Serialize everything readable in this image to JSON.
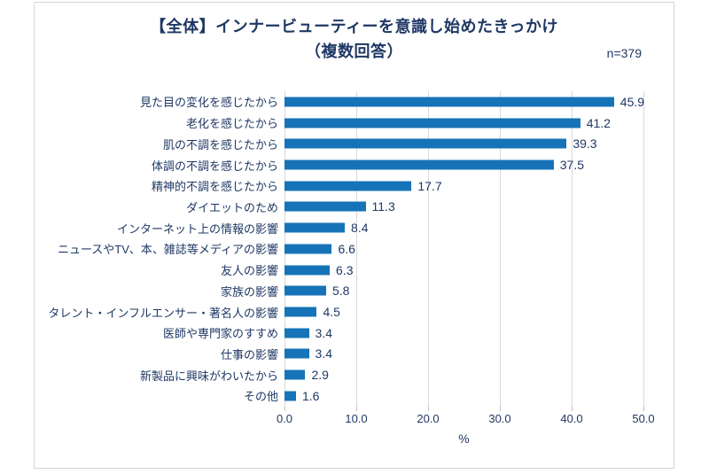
{
  "header": {
    "title_line1": "【全体】インナービューティーを意識し始めたきっかけ",
    "title_line2": "（複数回答）",
    "sample_size": "n=379"
  },
  "colors": {
    "bar": "#1673b8",
    "text": "#1f3864",
    "gridline": "#d9d9d9",
    "frame_border": "#d6d6d6"
  },
  "chart_data": {
    "type": "bar",
    "orientation": "horizontal",
    "title": "【全体】インナービューティーを意識し始めたきっかけ（複数回答）",
    "annotation": "n=379",
    "categories": [
      "見た目の変化を感じたから",
      "老化を感じたから",
      "肌の不調を感じたから",
      "体調の不調を感じたから",
      "精神的不調を感じたから",
      "ダイエットのため",
      "インターネット上の情報の影響",
      "ニュースやTV、本、雑誌等メディアの影響",
      "友人の影響",
      "家族の影響",
      "タレント・インフルエンサー・著名人の影響",
      "医師や専門家のすすめ",
      "仕事の影響",
      "新製品に興味がわいたから",
      "その他"
    ],
    "values": [
      45.9,
      41.2,
      39.3,
      37.5,
      17.7,
      11.3,
      8.4,
      6.6,
      6.3,
      5.8,
      4.5,
      3.4,
      3.4,
      2.9,
      1.6
    ],
    "xlabel": "%",
    "ylabel": "",
    "xlim": [
      0,
      50
    ],
    "xticks": [
      "0.0",
      "10.0",
      "20.0",
      "30.0",
      "40.0",
      "50.0"
    ],
    "grid": true,
    "legend": false
  }
}
